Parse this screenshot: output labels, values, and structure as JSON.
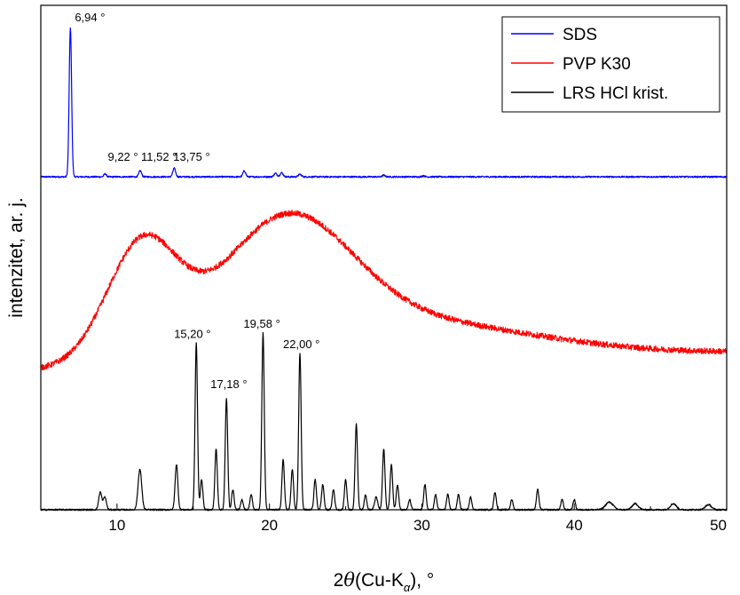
{
  "chart_data": {
    "type": "line",
    "xlabel_pre": "2",
    "xlabel_theta": "θ",
    "xlabel_mid": "(Cu-K",
    "xlabel_sub": "α",
    "xlabel_post": "), °",
    "ylabel": "intenzitet, ar. j.",
    "xlim": [
      5,
      50
    ],
    "ylim": [
      0,
      1
    ],
    "xticks": [
      "10",
      "20",
      "30",
      "40",
      "50"
    ],
    "yticks_visible": false,
    "legend": {
      "position": "top-right"
    },
    "series": [
      {
        "name": "SDS",
        "color": "#0000ff",
        "baseline": 0.66,
        "noise": 0.0015,
        "broad": [],
        "peaks": [
          {
            "x": 6.94,
            "h": 0.295,
            "w": 0.08
          },
          {
            "x": 9.22,
            "h": 0.006,
            "w": 0.08
          },
          {
            "x": 11.52,
            "h": 0.012,
            "w": 0.09
          },
          {
            "x": 13.75,
            "h": 0.017,
            "w": 0.09
          },
          {
            "x": 18.35,
            "h": 0.012,
            "w": 0.09
          },
          {
            "x": 20.4,
            "h": 0.007,
            "w": 0.1
          },
          {
            "x": 20.8,
            "h": 0.008,
            "w": 0.1
          },
          {
            "x": 22.0,
            "h": 0.005,
            "w": 0.1
          },
          {
            "x": 27.5,
            "h": 0.003,
            "w": 0.1
          },
          {
            "x": 30.1,
            "h": 0.002,
            "w": 0.1
          }
        ]
      },
      {
        "name": "PVP K30",
        "color": "#ff0000",
        "baseline": 0.31,
        "slope_end": 0.345,
        "noise": 0.006,
        "broad": [
          {
            "x": 11.6,
            "h": 0.225,
            "w": 2.3
          },
          {
            "x": 21.0,
            "h": 0.24,
            "w": 4.3
          },
          {
            "x": 28.0,
            "h": 0.08,
            "w": 9.0
          }
        ],
        "peaks": []
      },
      {
        "name": "LRS HCl krist.",
        "color": "#000000",
        "baseline": 0.0,
        "noise": 0.0015,
        "broad": [],
        "peaks": [
          {
            "x": 8.9,
            "h": 0.035,
            "w": 0.1
          },
          {
            "x": 9.2,
            "h": 0.025,
            "w": 0.1
          },
          {
            "x": 11.5,
            "h": 0.08,
            "w": 0.12
          },
          {
            "x": 13.9,
            "h": 0.09,
            "w": 0.09
          },
          {
            "x": 15.2,
            "h": 0.33,
            "w": 0.08
          },
          {
            "x": 15.55,
            "h": 0.06,
            "w": 0.08
          },
          {
            "x": 16.5,
            "h": 0.12,
            "w": 0.08
          },
          {
            "x": 17.18,
            "h": 0.22,
            "w": 0.08
          },
          {
            "x": 17.6,
            "h": 0.04,
            "w": 0.08
          },
          {
            "x": 18.2,
            "h": 0.02,
            "w": 0.08
          },
          {
            "x": 18.8,
            "h": 0.03,
            "w": 0.08
          },
          {
            "x": 19.58,
            "h": 0.35,
            "w": 0.08
          },
          {
            "x": 20.9,
            "h": 0.1,
            "w": 0.08
          },
          {
            "x": 21.5,
            "h": 0.08,
            "w": 0.08
          },
          {
            "x": 22.0,
            "h": 0.31,
            "w": 0.08
          },
          {
            "x": 23.0,
            "h": 0.06,
            "w": 0.08
          },
          {
            "x": 23.5,
            "h": 0.05,
            "w": 0.08
          },
          {
            "x": 24.2,
            "h": 0.04,
            "w": 0.08
          },
          {
            "x": 25.0,
            "h": 0.06,
            "w": 0.08
          },
          {
            "x": 25.7,
            "h": 0.17,
            "w": 0.08
          },
          {
            "x": 26.3,
            "h": 0.03,
            "w": 0.08
          },
          {
            "x": 27.0,
            "h": 0.025,
            "w": 0.1
          },
          {
            "x": 27.5,
            "h": 0.12,
            "w": 0.08
          },
          {
            "x": 28.0,
            "h": 0.09,
            "w": 0.08
          },
          {
            "x": 28.4,
            "h": 0.05,
            "w": 0.08
          },
          {
            "x": 29.2,
            "h": 0.02,
            "w": 0.08
          },
          {
            "x": 30.2,
            "h": 0.05,
            "w": 0.08
          },
          {
            "x": 30.9,
            "h": 0.03,
            "w": 0.08
          },
          {
            "x": 31.7,
            "h": 0.03,
            "w": 0.08
          },
          {
            "x": 32.4,
            "h": 0.03,
            "w": 0.08
          },
          {
            "x": 33.2,
            "h": 0.025,
            "w": 0.08
          },
          {
            "x": 34.8,
            "h": 0.035,
            "w": 0.08
          },
          {
            "x": 35.9,
            "h": 0.02,
            "w": 0.08
          },
          {
            "x": 37.6,
            "h": 0.04,
            "w": 0.08
          },
          {
            "x": 39.2,
            "h": 0.02,
            "w": 0.08
          },
          {
            "x": 40.0,
            "h": 0.02,
            "w": 0.08
          },
          {
            "x": 42.3,
            "h": 0.015,
            "w": 0.25
          },
          {
            "x": 44.0,
            "h": 0.012,
            "w": 0.2
          },
          {
            "x": 46.5,
            "h": 0.012,
            "w": 0.2
          },
          {
            "x": 48.8,
            "h": 0.01,
            "w": 0.2
          }
        ]
      }
    ],
    "annotations": [
      {
        "text": "6,94 °",
        "x": 6.94,
        "series": 0
      },
      {
        "text": "9,22 °",
        "x": 9.22,
        "series": 0
      },
      {
        "text": "11,52 °",
        "x": 11.52,
        "series": 0
      },
      {
        "text": "13,75 °",
        "x": 13.75,
        "series": 0
      },
      {
        "text": "15,20 °",
        "x": 15.2,
        "series": 2
      },
      {
        "text": "17,18 °",
        "x": 17.18,
        "series": 2
      },
      {
        "text": "19,58 °",
        "x": 19.58,
        "series": 2
      },
      {
        "text": "22,00 °",
        "x": 22.0,
        "series": 2
      }
    ]
  }
}
